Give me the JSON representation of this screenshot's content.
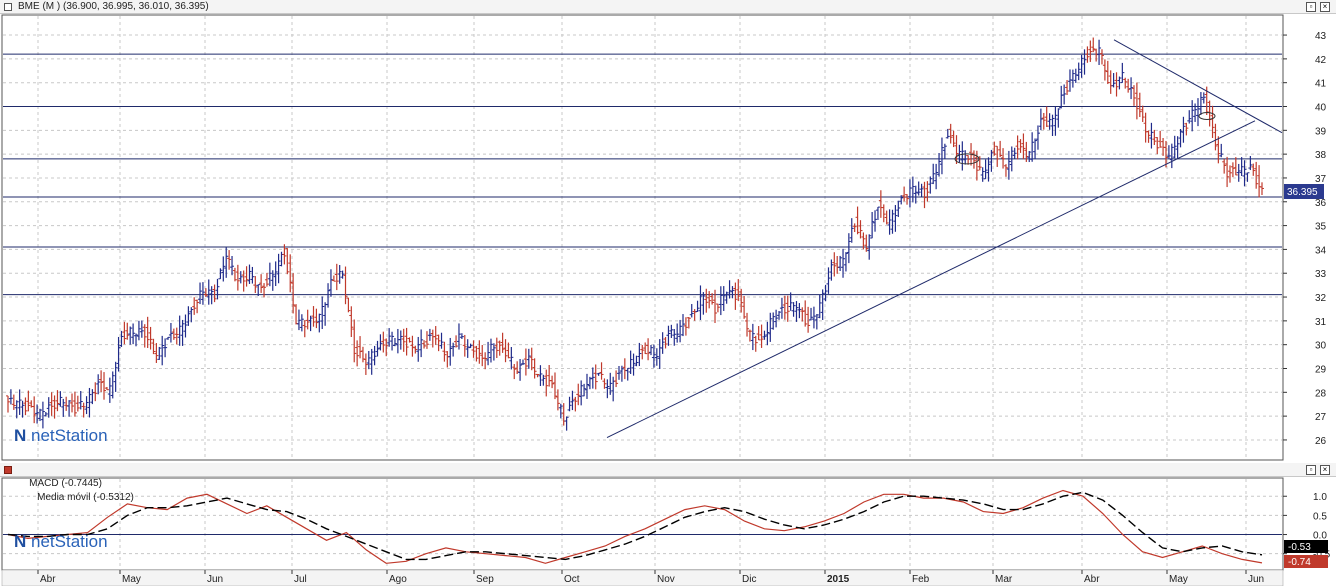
{
  "price_panel": {
    "title": "BME (M ) (36.900, 36.995, 36.010, 36.395)",
    "current_price_label": "36.395",
    "y_ticks": [
      "43",
      "42",
      "41",
      "40",
      "39",
      "38",
      "37",
      "36",
      "35",
      "34",
      "33",
      "32",
      "31",
      "30",
      "29",
      "28",
      "27",
      "26"
    ],
    "watermark": "netStation"
  },
  "macd_panel": {
    "title_macd": "MACD (-0.7445)",
    "title_ma": "Media móvil (-0.5312)",
    "y_ticks": [
      "1.0",
      "0.5",
      "0.0",
      "-0.5"
    ],
    "macd_value_label": "-0.74",
    "ma_value_label": "-0.53",
    "watermark": "netStation"
  },
  "x_axis": {
    "months": [
      "Abr",
      "May",
      "Jun",
      "Jul",
      "Ago",
      "Sep",
      "Oct",
      "Nov",
      "Dic",
      "2015",
      "Feb",
      "Mar",
      "Abr",
      "May",
      "Jun"
    ]
  },
  "window_buttons": {
    "restore": "▫",
    "close": "×"
  },
  "colors": {
    "up": "#1f2a8a",
    "down": "#c0392b",
    "hline": "#1f2a6a",
    "grid": "#c8c8c8",
    "macd": "#c0392b",
    "signal": "#000000",
    "price_box": "#2b3a8f"
  },
  "chart_data": [
    {
      "type": "ohlc",
      "title": "BME (M ) (36.900, 36.995, 36.010, 36.395)",
      "x_ticks": [
        "Abr",
        "May",
        "Jun",
        "Jul",
        "Ago",
        "Sep",
        "Oct",
        "Nov",
        "Dic",
        "2015",
        "Feb",
        "Mar",
        "Abr",
        "May",
        "Jun"
      ],
      "ylim": [
        25.2,
        43.8
      ],
      "grid": true,
      "last": {
        "open": 36.9,
        "high": 36.995,
        "low": 36.01,
        "close": 36.395
      },
      "horizontal_levels": [
        42.2,
        40.0,
        37.8,
        36.2,
        34.1,
        32.1
      ],
      "trendlines": [
        {
          "from": {
            "x": "Oct",
            "y": 26.1
          },
          "to": {
            "x": "May",
            "y": 39.4
          }
        },
        {
          "from": {
            "x": "Abr",
            "y": 42.8
          },
          "to": {
            "x": "Jun",
            "y": 38.9
          }
        }
      ],
      "series_close": [
        27.6,
        27.3,
        27.1,
        27.4,
        27.7,
        27.3,
        27.6,
        28.3,
        28.1,
        30.3,
        30.6,
        30.5,
        29.6,
        30.2,
        30.6,
        31.4,
        32.3,
        32.1,
        33.8,
        32.6,
        32.9,
        32.3,
        33.0,
        33.9,
        31.0,
        30.9,
        31.1,
        32.6,
        33.0,
        29.8,
        29.3,
        29.8,
        30.2,
        30.2,
        29.9,
        30.1,
        30.4,
        29.5,
        30.3,
        29.8,
        29.4,
        30.0,
        29.7,
        28.9,
        29.4,
        28.6,
        28.3,
        26.9,
        27.8,
        28.4,
        28.7,
        28.2,
        28.9,
        29.3,
        29.8,
        29.6,
        30.4,
        30.6,
        31.2,
        32.1,
        31.5,
        32.3,
        32.0,
        30.4,
        30.1,
        31.2,
        31.5,
        31.7,
        30.8,
        31.6,
        33.2,
        33.6,
        35.1,
        34.2,
        35.8,
        35.1,
        36.0,
        36.6,
        36.3,
        37.4,
        38.8,
        38.0,
        37.8,
        37.2,
        38.1,
        37.6,
        38.3,
        38.0,
        39.3,
        39.4,
        40.6,
        41.5,
        42.2,
        42.4,
        40.7,
        41.3,
        40.4,
        39.1,
        38.4,
        37.9,
        38.8,
        39.7,
        40.4,
        38.5,
        37.2,
        37.3,
        37.4,
        36.4
      ]
    },
    {
      "type": "line",
      "title": "MACD (-0.7445)  Media móvil (-0.5312)",
      "x_ticks": [
        "Abr",
        "May",
        "Jun",
        "Jul",
        "Ago",
        "Sep",
        "Oct",
        "Nov",
        "Dic",
        "2015",
        "Feb",
        "Mar",
        "Abr",
        "May",
        "Jun"
      ],
      "ylim": [
        -0.9,
        1.45
      ],
      "grid": true,
      "series": [
        {
          "name": "MACD",
          "style": "solid",
          "values": [
            0.0,
            -0.1,
            -0.05,
            0.0,
            0.05,
            0.45,
            0.8,
            0.7,
            0.65,
            0.95,
            1.05,
            0.8,
            0.55,
            0.75,
            0.45,
            0.15,
            -0.15,
            0.05,
            -0.4,
            -0.75,
            -0.7,
            -0.5,
            -0.35,
            -0.45,
            -0.5,
            -0.55,
            -0.6,
            -0.75,
            -0.6,
            -0.45,
            -0.3,
            -0.05,
            0.15,
            0.4,
            0.65,
            0.75,
            0.65,
            0.35,
            0.15,
            0.1,
            0.2,
            0.35,
            0.55,
            0.85,
            1.05,
            1.05,
            0.95,
            0.95,
            0.85,
            0.6,
            0.55,
            0.7,
            0.95,
            1.15,
            1.0,
            0.55,
            0.0,
            -0.45,
            -0.6,
            -0.45,
            -0.3,
            -0.5,
            -0.65,
            -0.74
          ]
        },
        {
          "name": "Media móvil",
          "style": "dashed",
          "values": [
            0.0,
            -0.05,
            -0.05,
            0.0,
            0.0,
            0.15,
            0.5,
            0.7,
            0.7,
            0.75,
            0.85,
            0.95,
            0.8,
            0.65,
            0.6,
            0.4,
            0.15,
            -0.05,
            -0.25,
            -0.45,
            -0.65,
            -0.65,
            -0.55,
            -0.45,
            -0.45,
            -0.5,
            -0.55,
            -0.6,
            -0.65,
            -0.55,
            -0.4,
            -0.25,
            -0.05,
            0.2,
            0.45,
            0.6,
            0.7,
            0.6,
            0.4,
            0.25,
            0.15,
            0.25,
            0.4,
            0.6,
            0.85,
            1.0,
            1.0,
            0.95,
            0.9,
            0.8,
            0.65,
            0.65,
            0.8,
            1.0,
            1.1,
            0.9,
            0.5,
            0.05,
            -0.35,
            -0.45,
            -0.35,
            -0.3,
            -0.45,
            -0.53
          ]
        }
      ]
    }
  ]
}
